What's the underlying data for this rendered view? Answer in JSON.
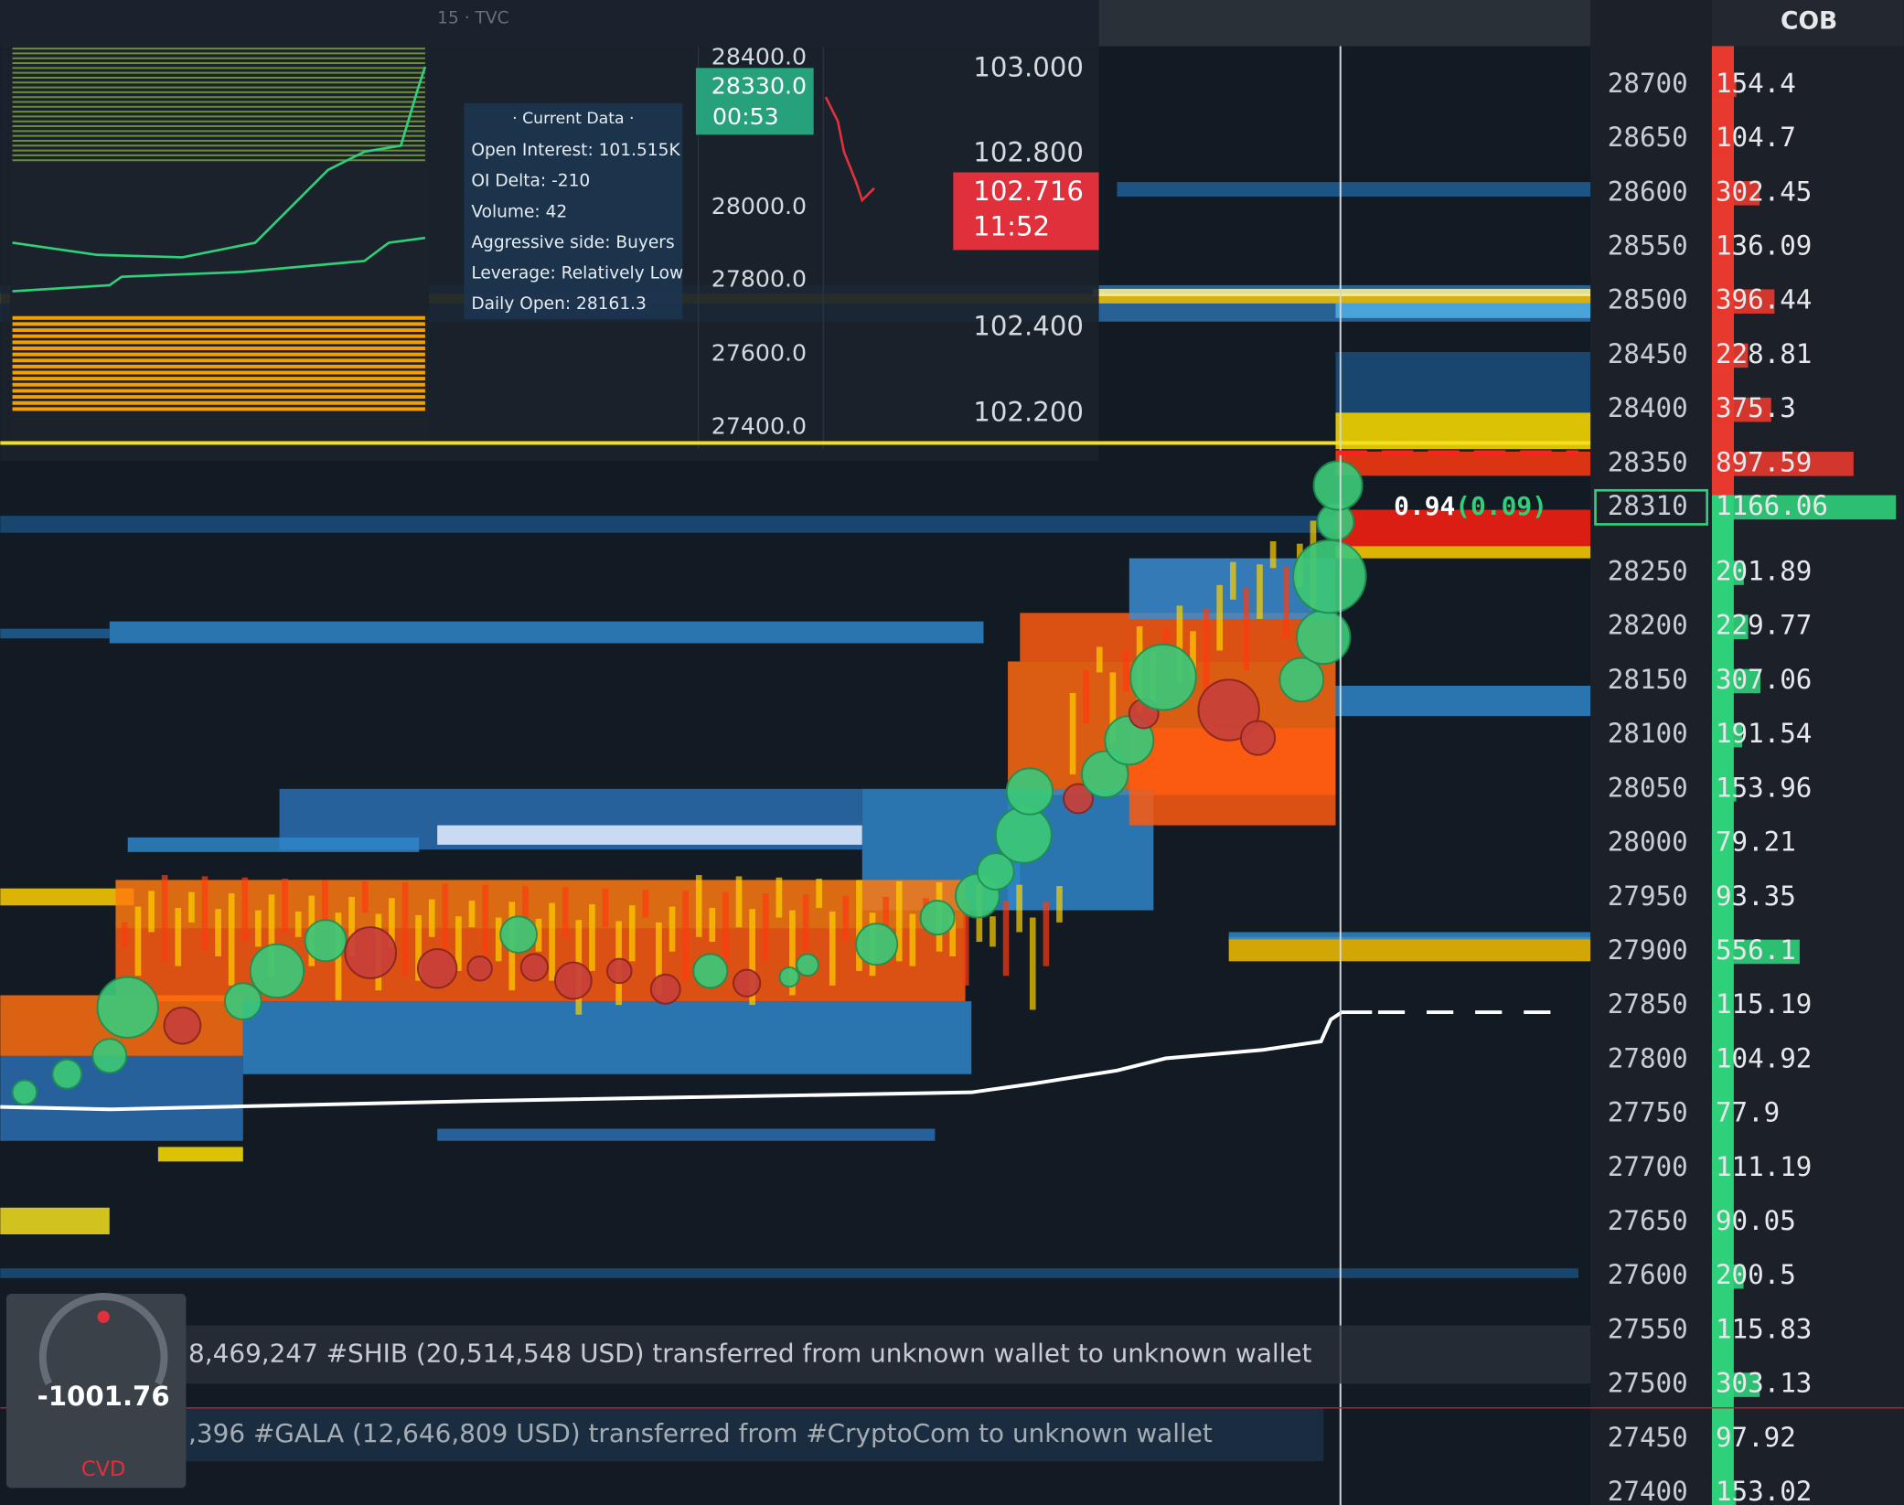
{
  "header": {
    "chart_label": "15 · TVC",
    "cob_title": "COB"
  },
  "tooltip": {
    "title": "· Current Data ·",
    "rows": [
      "Open Interest:  101.515K",
      "OI Delta:  -210",
      "Volume:  42",
      "Aggressive side: Buyers",
      "Leverage: Relatively Low",
      "Daily Open:  28161.3"
    ]
  },
  "price_axis": {
    "labels": [
      "28400.0",
      "28000.0",
      "27800.0",
      "27600.0",
      "27400.0"
    ],
    "badge_price": "28330.0",
    "badge_time": "00:53"
  },
  "dxy_axis": {
    "labels": [
      "103.000",
      "102.800",
      "102.400",
      "102.200"
    ],
    "badge_price": "102.716",
    "badge_time": "11:52"
  },
  "current_marker": {
    "ratio": "0.94",
    "delta": "(0.09)"
  },
  "order_book": {
    "rows": [
      [
        28700,
        154.4
      ],
      [
        28650,
        104.7
      ],
      [
        28600,
        302.45
      ],
      [
        28550,
        136.09
      ],
      [
        28500,
        396.44
      ],
      [
        28450,
        228.81
      ],
      [
        28400,
        375.3
      ],
      [
        28350,
        897.59
      ],
      [
        28310,
        1166.06
      ],
      [
        28250,
        201.89
      ],
      [
        28200,
        229.77
      ],
      [
        28150,
        307.06
      ],
      [
        28100,
        191.54
      ],
      [
        28050,
        153.96
      ],
      [
        28000,
        79.21
      ],
      [
        27950,
        93.35
      ],
      [
        27900,
        556.1
      ],
      [
        27850,
        115.19
      ],
      [
        27800,
        104.92
      ],
      [
        27750,
        77.9
      ],
      [
        27700,
        111.19
      ],
      [
        27650,
        90.05
      ],
      [
        27600,
        200.5
      ],
      [
        27550,
        115.83
      ],
      [
        27500,
        303.13
      ],
      [
        27450,
        97.92
      ],
      [
        27400,
        153.02
      ]
    ],
    "current_index": 8
  },
  "news": [
    "8,469,247 #SHIB (20,514,548 USD) transferred from unknown wallet to unknown wallet",
    ",396 #GALA (12,646,809 USD) transferred from #CryptoCom to unknown wallet"
  ],
  "cvd": {
    "value": "-1001.76",
    "label": "CVD"
  }
}
